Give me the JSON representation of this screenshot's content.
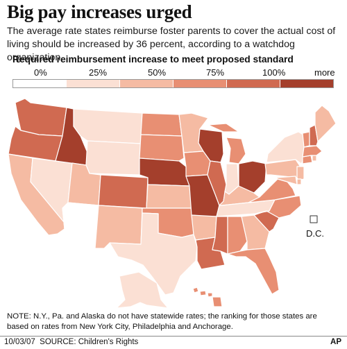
{
  "title": "Big pay increases urged",
  "subtitle": "The average rate states reimburse foster parents to cover the actual cost of living should be increased by 36 percent, according to a watchdog organization.",
  "legend": {
    "title": "Required reimbursement increase to meet proposed standard",
    "labels": [
      "0%",
      "25%",
      "50%",
      "75%",
      "100%",
      "more"
    ],
    "colors": [
      "#ffffff",
      "#fbe0d4",
      "#f5bba3",
      "#e88f73",
      "#d06a51",
      "#a43f2c"
    ]
  },
  "dc_label": "D.C.",
  "note": "NOTE: N.Y., Pa. and Alaska do not have statewide rates; the ranking for those states are based on rates from New York City, Philadelphia and Anchorage.",
  "footer": {
    "date": "10/03/07",
    "source": "SOURCE: Children's Rights",
    "credit": "AP"
  },
  "chart_data": {
    "type": "choropleth",
    "classes": [
      "0%",
      "25%",
      "50%",
      "75%",
      "100%",
      "more"
    ],
    "states": {
      "WA": 4,
      "OR": 4,
      "CA": 2,
      "NV": 1,
      "ID": 5,
      "MT": 1,
      "WY": 1,
      "UT": 2,
      "AZ": 0,
      "CO": 4,
      "NM": 2,
      "ND": 3,
      "SD": 3,
      "NE": 5,
      "KS": 2,
      "OK": 3,
      "TX": 1,
      "MN": 2,
      "IA": 3,
      "MO": 5,
      "AR": 2,
      "LA": 4,
      "WI": 5,
      "IL": 4,
      "MI": 3,
      "IN": 1,
      "OH": 5,
      "KY": 2,
      "TN": 1,
      "MS": 4,
      "AL": 3,
      "GA": 2,
      "FL": 3,
      "SC": 4,
      "NC": 3,
      "VA": 3,
      "WV": 0,
      "PA": 2,
      "NY": 1,
      "ME": 2,
      "VT": 3,
      "NH": 4,
      "MA": 3,
      "RI": 2,
      "CT": 3,
      "NJ": 2,
      "DE": 2,
      "MD": 2,
      "DC": 0,
      "AK": 1,
      "HI": 3
    }
  }
}
